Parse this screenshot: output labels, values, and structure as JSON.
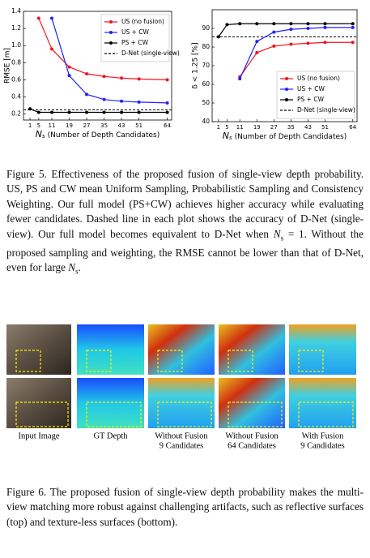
{
  "chart_data": [
    {
      "type": "line",
      "ylabel": "RMSE [m]",
      "xlabel": {
        "var": "N",
        "sub": "s",
        "text": "(Number of Depth Candidates)"
      },
      "x": [
        1,
        5,
        11,
        19,
        27,
        35,
        43,
        51,
        64
      ],
      "xlim": [
        -2,
        66
      ],
      "xticks": [
        1,
        5,
        11,
        19,
        27,
        35,
        43,
        51,
        64
      ],
      "ylim": [
        0.13,
        1.4
      ],
      "yticks": [
        0.2,
        0.4,
        0.6,
        0.8,
        {
          "value": 1,
          "label": "1.0"
        },
        1.2,
        1.4
      ],
      "legend": "upper right",
      "series": [
        {
          "name": "US (no fusion)",
          "color": "#f0141e",
          "values": [
            null,
            1.32,
            0.96,
            0.75,
            0.67,
            0.64,
            0.62,
            0.61,
            0.6
          ]
        },
        {
          "name": "US + CW",
          "color": "#2020ff",
          "values": [
            null,
            null,
            1.32,
            0.65,
            0.43,
            0.37,
            0.35,
            0.34,
            0.33
          ]
        },
        {
          "name": "PS + CW",
          "color": "#000000",
          "values": [
            0.26,
            0.22,
            0.22,
            0.22,
            0.22,
            0.22,
            0.22,
            0.22,
            0.22
          ]
        }
      ],
      "reference_lines": [
        {
          "name": "D-Net (single-view)",
          "value": 0.25,
          "color": "#000000"
        }
      ]
    },
    {
      "type": "line",
      "ylabel": "δ < 1.25 [%]",
      "xlabel": {
        "var": "N",
        "sub": "s",
        "text": "(Number of Depth Candidates)"
      },
      "x": [
        1,
        5,
        11,
        19,
        27,
        35,
        43,
        51,
        64
      ],
      "xlim": [
        -2,
        66
      ],
      "xticks": [
        1,
        5,
        11,
        19,
        27,
        35,
        43,
        51,
        64
      ],
      "ylim": [
        40,
        100
      ],
      "yticks": [
        40,
        50,
        60,
        70,
        80,
        90
      ],
      "legend": "lower right",
      "series": [
        {
          "name": "US (no fusion)",
          "color": "#f0141e",
          "values": [
            null,
            null,
            64,
            77,
            80.5,
            81.5,
            82,
            82.5,
            82.5
          ]
        },
        {
          "name": "US + CW",
          "color": "#2020ff",
          "values": [
            null,
            null,
            63,
            83,
            88,
            89.5,
            90,
            90.5,
            90.5
          ]
        },
        {
          "name": "PS + CW",
          "color": "#000000",
          "values": [
            85.5,
            92,
            92.5,
            92.5,
            92.5,
            92.5,
            92.5,
            92.5,
            92.5
          ]
        }
      ],
      "reference_lines": [
        {
          "name": "D-Net (single-view)",
          "value": 85.5,
          "color": "#000000"
        }
      ]
    }
  ],
  "figure_5": {
    "caption": [
      "Figure 5.  Effectiveness of the proposed fusion of single-view depth probability. US, PS and CW mean Uniform Sampling, Probabilistic Sampling and Consistency Weighting.  Our full model (PS+CW) achieves higher accuracy while evaluating fewer candidates.  Dashed line in each plot shows the accuracy of D-Net (single-view). Our full model becomes equivalent to D-Net when ",
      {
        "var": "N",
        "sub": "s"
      },
      " = 1.  Without the proposed sampling and weighting, the RMSE cannot be lower than that of D-Net, even for large ",
      {
        "var": "N",
        "sub": "s"
      },
      "."
    ]
  },
  "figure_6": {
    "columns": [
      [
        "Input Image"
      ],
      [
        "GT Depth"
      ],
      [
        "Without Fusion",
        "9 Candidates"
      ],
      [
        "Without Fusion",
        "64 Candidates"
      ],
      [
        "With Fusion",
        "9 Candidates"
      ]
    ],
    "caption": [
      "Figure 6.  The proposed fusion of single-view depth probability makes the multi-view matching more robust against challenging artifacts, such as reflective surfaces (top) and texture-less surfaces (bottom)."
    ]
  }
}
